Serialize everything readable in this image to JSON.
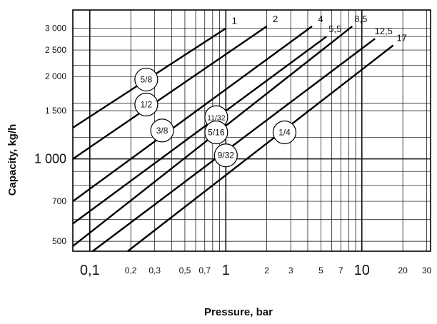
{
  "chart_data": {
    "type": "line",
    "xlabel": "Pressure, bar",
    "ylabel": "Capacity, kg/h",
    "x_scale": "log",
    "y_scale": "log",
    "xlim": [
      0.075,
      32
    ],
    "ylim": [
      460,
      3500
    ],
    "x_ticks": [
      {
        "value": 0.1,
        "label": "0,1",
        "major": true
      },
      {
        "value": 0.2,
        "label": "0,2",
        "major": false
      },
      {
        "value": 0.3,
        "label": "0,3",
        "major": false
      },
      {
        "value": 0.5,
        "label": "0,5",
        "major": false
      },
      {
        "value": 0.7,
        "label": "0,7",
        "major": false
      },
      {
        "value": 1,
        "label": "1",
        "major": true
      },
      {
        "value": 2,
        "label": "2",
        "major": false
      },
      {
        "value": 3,
        "label": "3",
        "major": false
      },
      {
        "value": 5,
        "label": "5",
        "major": false
      },
      {
        "value": 7,
        "label": "7",
        "major": false
      },
      {
        "value": 10,
        "label": "10",
        "major": true
      },
      {
        "value": 20,
        "label": "20",
        "major": false
      },
      {
        "value": 30,
        "label": "30",
        "major": false
      }
    ],
    "x_minor_grid": [
      0.4,
      0.6,
      0.8,
      0.9,
      4,
      6,
      8,
      9
    ],
    "y_ticks": [
      {
        "value": 500,
        "label": "500",
        "major": false
      },
      {
        "value": 700,
        "label": "700",
        "major": false
      },
      {
        "value": 1000,
        "label": "1 000",
        "major": true
      },
      {
        "value": 1500,
        "label": "1 500",
        "major": false
      },
      {
        "value": 2000,
        "label": "2 000",
        "major": false
      },
      {
        "value": 2500,
        "label": "2 500",
        "major": false
      },
      {
        "value": 3000,
        "label": "3 000",
        "major": false
      }
    ],
    "y_minor_grid": [
      600,
      800,
      900,
      1200,
      1600,
      2200,
      2800
    ],
    "series": [
      {
        "name": "1",
        "x": [
          0.075,
          1.0
        ],
        "y": [
          1300,
          3000
        ]
      },
      {
        "name": "2",
        "x": [
          0.075,
          2.0
        ],
        "y": [
          1000,
          3050
        ]
      },
      {
        "name": "4",
        "x": [
          0.075,
          4.3
        ],
        "y": [
          700,
          3050
        ]
      },
      {
        "name": "5,5",
        "x": [
          0.075,
          5.5
        ],
        "y": [
          580,
          2800
        ]
      },
      {
        "name": "8,5",
        "x": [
          0.075,
          8.5
        ],
        "y": [
          480,
          3050
        ]
      },
      {
        "name": "12,5",
        "x": [
          0.105,
          12.5
        ],
        "y": [
          460,
          2750
        ]
      },
      {
        "name": "17",
        "x": [
          0.19,
          17.0
        ],
        "y": [
          460,
          2600
        ]
      }
    ],
    "annotations": [
      {
        "text": "5/8",
        "x": 0.26,
        "y": 1950
      },
      {
        "text": "1/2",
        "x": 0.26,
        "y": 1580
      },
      {
        "text": "3/8",
        "x": 0.34,
        "y": 1270
      },
      {
        "text": "11/32",
        "x": 0.85,
        "y": 1420
      },
      {
        "text": "5/16",
        "x": 0.85,
        "y": 1250
      },
      {
        "text": "9/32",
        "x": 1.0,
        "y": 1030
      },
      {
        "text": "1/4",
        "x": 2.7,
        "y": 1250
      }
    ],
    "grid": true
  }
}
